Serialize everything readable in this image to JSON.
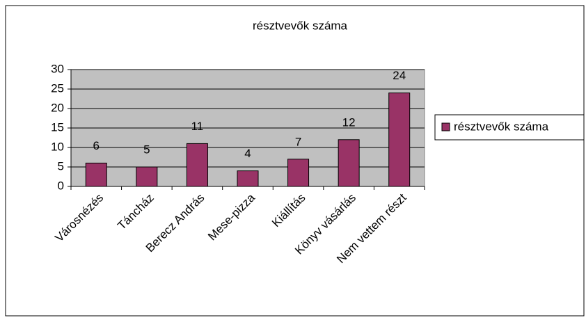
{
  "chart_data": {
    "type": "bar",
    "title": "résztvevők száma",
    "categories": [
      "Városnézés",
      "Táncház",
      "Berecz András",
      "Mese-pizza",
      "Kiállítás",
      "Könyv vásárlás",
      "Nem vettem részt"
    ],
    "series": [
      {
        "name": "résztvevők száma",
        "color": "#993366",
        "values": [
          6,
          5,
          11,
          4,
          7,
          12,
          24
        ]
      }
    ],
    "ylim": [
      0,
      30
    ],
    "yticks": [
      0,
      5,
      10,
      15,
      20,
      25,
      30
    ],
    "grid": true,
    "legend": "right"
  }
}
